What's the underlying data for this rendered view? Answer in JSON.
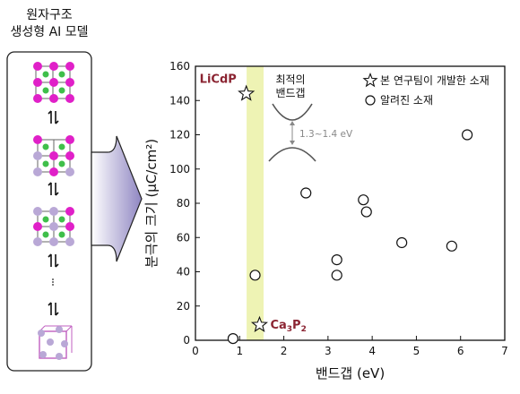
{
  "panel_title": [
    "원자구조",
    "생성형 AI 모델"
  ],
  "chart_data": {
    "type": "scatter",
    "title": "",
    "xlabel": "밴드갭 (eV)",
    "ylabel": "분극의 크기 (μC/cm²)",
    "xlim": [
      0,
      7
    ],
    "ylim": [
      0,
      160
    ],
    "xticks": [
      "0",
      "1",
      "2",
      "3",
      "4",
      "5",
      "6",
      "7"
    ],
    "yticks": [
      "0",
      "20",
      "40",
      "60",
      "80",
      "100",
      "120",
      "140",
      "160"
    ],
    "grid": false,
    "legend_position": "top-right",
    "optimal_band": {
      "x_range": [
        1.3,
        1.4
      ]
    },
    "inset": {
      "title_lines": [
        "최적의",
        "밴드갭"
      ],
      "gap_label": "1.3~1.4 eV"
    },
    "series": [
      {
        "name": "본 연구팀이 개발한 소재",
        "marker": "star",
        "points": [
          {
            "x": 1.15,
            "y": 144,
            "label": "LiCdP",
            "label_color": "#8b2432"
          },
          {
            "x": 1.45,
            "y": 9,
            "label": "Ca3P2",
            "label_color": "#8b2432"
          }
        ]
      },
      {
        "name": "알려진 소재",
        "marker": "circle",
        "points": [
          {
            "x": 0.85,
            "y": 1
          },
          {
            "x": 1.35,
            "y": 38
          },
          {
            "x": 2.5,
            "y": 86
          },
          {
            "x": 3.2,
            "y": 47
          },
          {
            "x": 3.2,
            "y": 38
          },
          {
            "x": 3.8,
            "y": 82
          },
          {
            "x": 3.87,
            "y": 75
          },
          {
            "x": 4.67,
            "y": 57
          },
          {
            "x": 5.8,
            "y": 55
          },
          {
            "x": 6.15,
            "y": 120
          }
        ]
      }
    ]
  },
  "colors": {
    "highlight_band": "#eef3b4",
    "label_dark_red": "#8b2432",
    "inset_gray": "#888888",
    "arrow_purple": "#9b92c8"
  }
}
